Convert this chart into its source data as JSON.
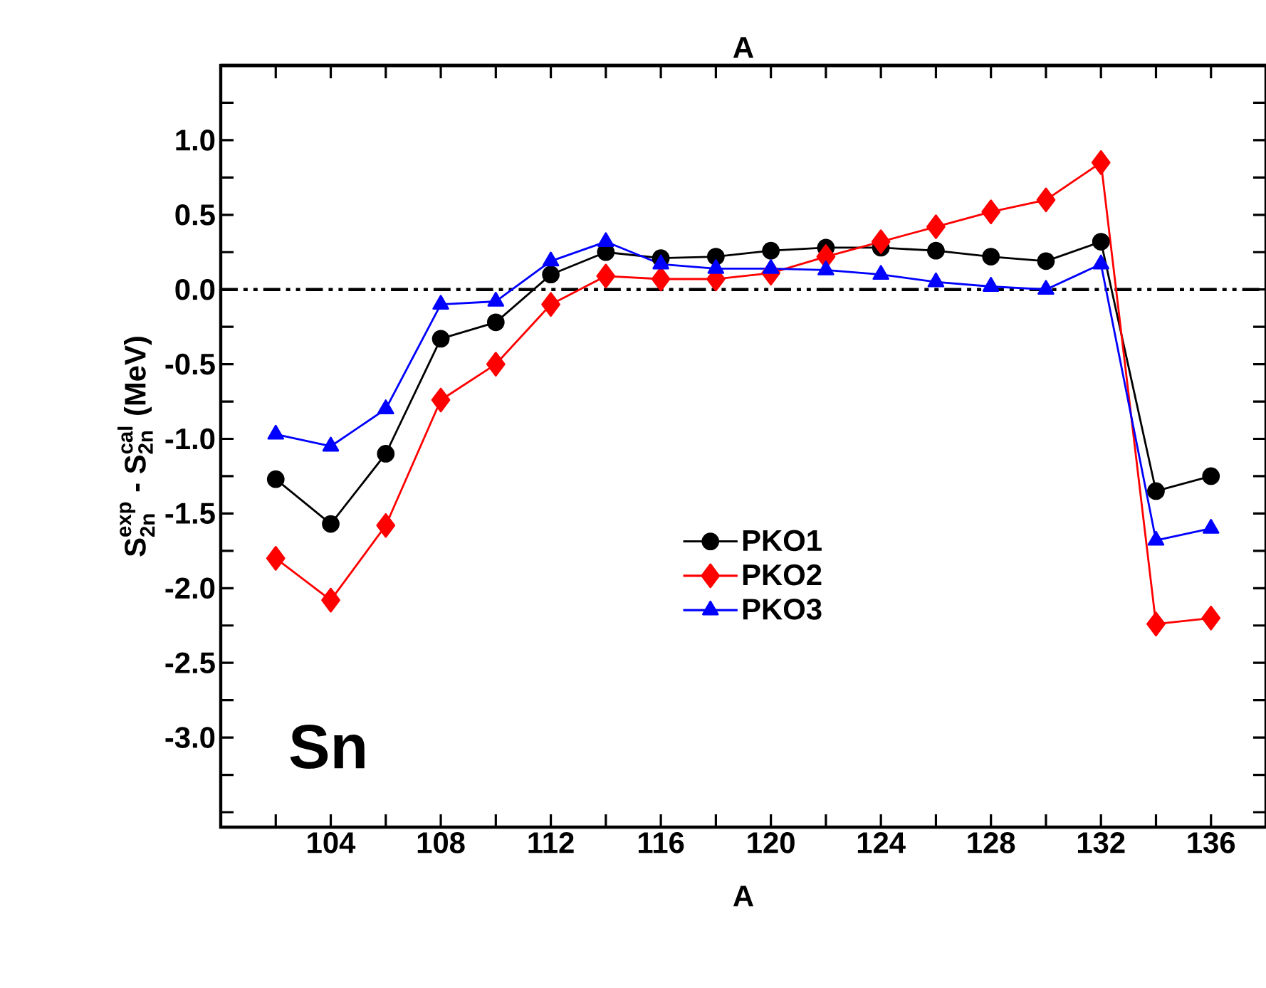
{
  "chart_data": {
    "type": "line",
    "xlabel": "A",
    "x2label": "A",
    "ylabel": "\\textbf{S}^{\\textbf{exp}}_{\\textbf{2n}}\\textbf{ - S}^{\\textbf{cal}}_{\\textbf{2n}}\\textbf{ (MeV)}",
    "x": [
      102,
      104,
      106,
      108,
      110,
      112,
      114,
      116,
      118,
      120,
      122,
      124,
      126,
      128,
      130,
      132,
      134,
      136
    ],
    "series": [
      {
        "name": "PKO1",
        "color": "#000000",
        "marker": "circle",
        "values": [
          -1.27,
          -1.57,
          -1.1,
          -0.33,
          -0.22,
          0.1,
          0.25,
          0.21,
          0.22,
          0.26,
          0.28,
          0.28,
          0.26,
          0.22,
          0.19,
          0.32,
          -1.35,
          -1.25
        ]
      },
      {
        "name": "PKO2",
        "color": "#ff0000",
        "marker": "diamond",
        "values": [
          -1.8,
          -2.08,
          -1.58,
          -0.74,
          -0.5,
          -0.1,
          0.09,
          0.07,
          0.07,
          0.11,
          0.22,
          0.32,
          0.42,
          0.52,
          0.6,
          0.85,
          -2.24,
          -2.2
        ]
      },
      {
        "name": "PKO3",
        "color": "#0000ff",
        "marker": "triangle",
        "values": [
          -0.97,
          -1.05,
          -0.8,
          -0.1,
          -0.08,
          0.19,
          0.32,
          0.17,
          0.14,
          0.14,
          0.13,
          0.1,
          0.05,
          0.02,
          0.0,
          0.17,
          -1.68,
          -1.6
        ]
      }
    ],
    "xlim": [
      100,
      138
    ],
    "ylim": [
      -3.6,
      1.5
    ],
    "xticks": [
      {
        "value": 102,
        "label": null
      },
      104,
      {
        "value": 106,
        "label": null
      },
      108,
      {
        "value": 110,
        "label": null
      },
      112,
      {
        "value": 114,
        "label": null
      },
      116,
      {
        "value": 118,
        "label": null
      },
      120,
      {
        "value": 122,
        "label": null
      },
      124,
      {
        "value": 126,
        "label": null
      },
      128,
      {
        "value": 130,
        "label": null
      },
      132,
      {
        "value": 134,
        "label": null
      },
      136
    ],
    "yticks": [
      {
        "value": -3.5,
        "label": null
      },
      {
        "value": -3.25,
        "label": null
      },
      {
        "value": -3.0,
        "label": "-3.0"
      },
      {
        "value": -2.75,
        "label": null
      },
      -2.5,
      {
        "value": -2.25,
        "label": null
      },
      {
        "value": -2.0,
        "label": "-2.0"
      },
      {
        "value": -1.75,
        "label": null
      },
      -1.5,
      {
        "value": -1.25,
        "label": null
      },
      {
        "value": -1.0,
        "label": "-1.0"
      },
      {
        "value": -0.75,
        "label": null
      },
      -0.5,
      {
        "value": -0.25,
        "label": null
      },
      {
        "value": 0.0,
        "label": "0.0"
      },
      {
        "value": 0.25,
        "label": null
      },
      0.5,
      {
        "value": 0.75,
        "label": null
      },
      {
        "value": 1.0,
        "label": "1.0"
      },
      {
        "value": 1.25,
        "label": null
      }
    ],
    "ref_lines": [
      {
        "axis": "y",
        "value": 0,
        "color": "#000000",
        "line_style": "dashdotdotted"
      }
    ],
    "annotations": [
      "Sn"
    ],
    "legend": "center",
    "grid": false,
    "line_style": "solid"
  }
}
